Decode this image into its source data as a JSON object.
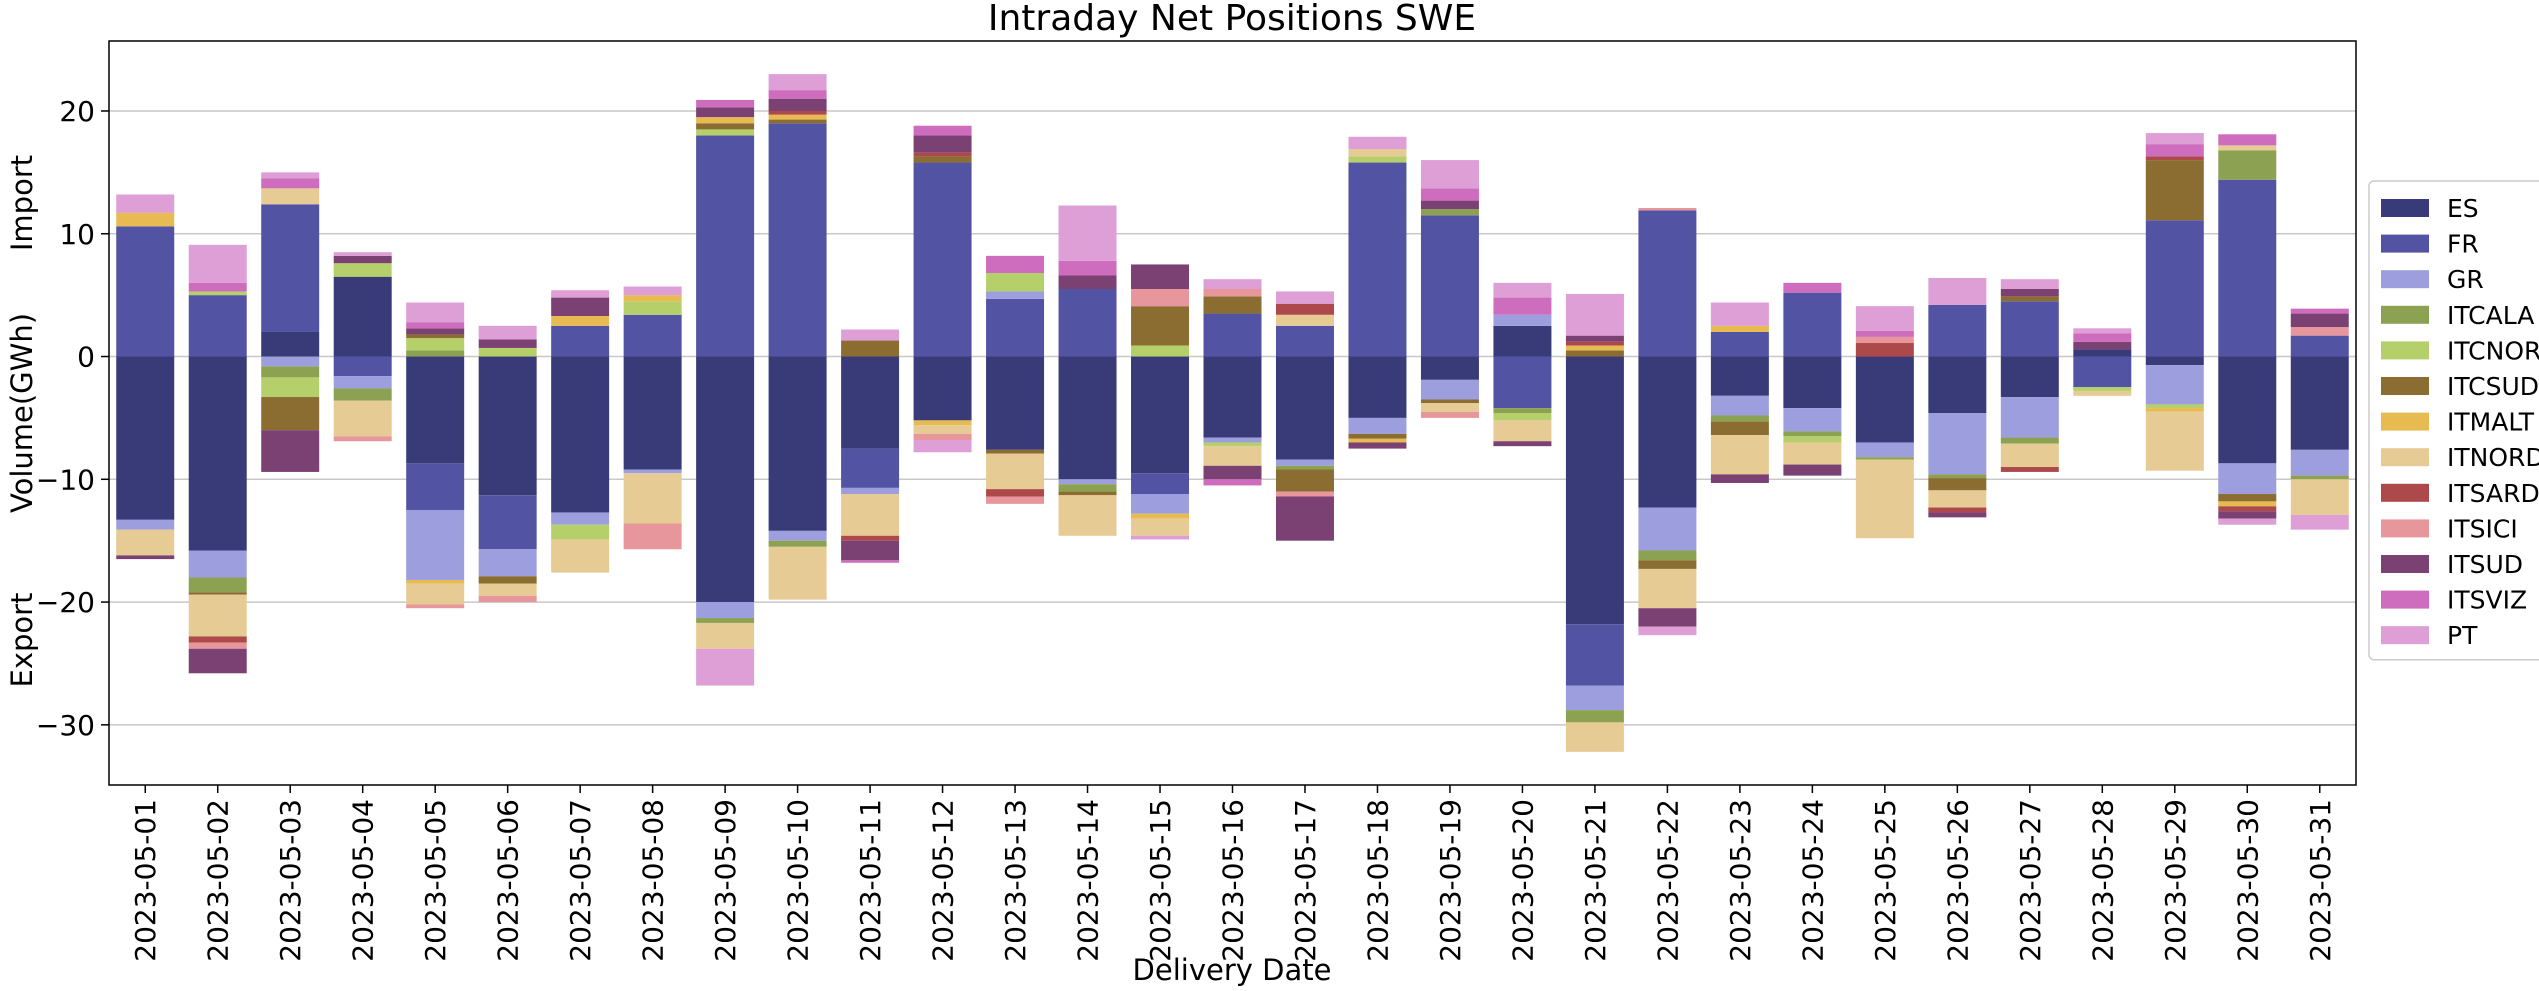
{
  "chart_data": {
    "type": "stacked-bar",
    "title": "Intraday Net Positions SWE",
    "x_label": "Delivery Date",
    "y_label": "Volume(GWh)",
    "annotations": [
      "Import",
      "Export"
    ],
    "categories": [
      "2023-05-01",
      "2023-05-02",
      "2023-05-03",
      "2023-05-04",
      "2023-05-05",
      "2023-05-06",
      "2023-05-07",
      "2023-05-08",
      "2023-05-09",
      "2023-05-10",
      "2023-05-11",
      "2023-05-12",
      "2023-05-13",
      "2023-05-14",
      "2023-05-15",
      "2023-05-16",
      "2023-05-17",
      "2023-05-18",
      "2023-05-19",
      "2023-05-20",
      "2023-05-21",
      "2023-05-22",
      "2023-05-23",
      "2023-05-24",
      "2023-05-25",
      "2023-05-26",
      "2023-05-27",
      "2023-05-28",
      "2023-05-29",
      "2023-05-30",
      "2023-05-31"
    ],
    "series": [
      {
        "name": "ES",
        "color": "#393b79",
        "values": [
          -13.3,
          -15.8,
          2.0,
          6.5,
          -8.7,
          -11.3,
          -12.7,
          -9.2,
          -20.0,
          -14.2,
          -7.5,
          -5.2,
          -7.6,
          -10.0,
          -9.5,
          -6.6,
          -8.4,
          -5.0,
          -1.9,
          2.5,
          -21.8,
          -12.3,
          -3.2,
          -4.2,
          -7.0,
          -4.6,
          -3.3,
          0.6,
          -0.7,
          -8.7,
          -7.6
        ]
      },
      {
        "name": "FR",
        "color": "#5254a3",
        "values": [
          10.6,
          5.0,
          10.4,
          -1.6,
          -3.8,
          -4.4,
          2.5,
          3.4,
          18.0,
          19.0,
          -3.2,
          15.8,
          4.7,
          5.5,
          -1.7,
          3.5,
          2.5,
          15.8,
          11.5,
          -4.2,
          -5.0,
          11.9,
          2.0,
          5.2,
          0,
          4.2,
          4.5,
          -2.5,
          11.1,
          14.4,
          1.7
        ]
      },
      {
        "name": "GR",
        "color": "#9c9ede",
        "values": [
          -0.8,
          -2.2,
          -0.8,
          -1.0,
          -5.7,
          -2.2,
          -1.0,
          -0.3,
          -1.3,
          -0.8,
          -0.5,
          0,
          0.6,
          -0.4,
          -1.6,
          -0.4,
          -0.5,
          -1.3,
          -1.6,
          0.9,
          -2.0,
          -3.5,
          -1.6,
          -1.9,
          -1.2,
          -5.0,
          -3.3,
          0,
          -3.2,
          -2.5,
          -2.1
        ]
      },
      {
        "name": "ITCALA",
        "color": "#8ca252",
        "values": [
          0,
          -1.2,
          -0.9,
          -1.0,
          0.5,
          0,
          0,
          0,
          -0.4,
          -0.5,
          0,
          0,
          0,
          -0.6,
          0,
          0,
          -0.3,
          0,
          0.5,
          -0.4,
          -1.0,
          -0.8,
          -0.5,
          -0.4,
          -0.2,
          -0.3,
          -0.5,
          0,
          0,
          2.4,
          -0.3
        ]
      },
      {
        "name": "ITCNOR",
        "color": "#b5cf6b",
        "values": [
          0,
          0.3,
          -1.6,
          1.1,
          1.0,
          0.7,
          -1.2,
          1.1,
          0.5,
          0,
          0,
          0,
          1.5,
          0,
          0.9,
          -0.3,
          0,
          0.5,
          0,
          -0.6,
          0,
          0,
          0,
          -0.5,
          0,
          0,
          0,
          -0.3,
          -0.3,
          0,
          0
        ]
      },
      {
        "name": "ITCSUD",
        "color": "#8c6d31",
        "values": [
          0,
          -0.2,
          -2.7,
          0,
          0.3,
          -0.6,
          0,
          0,
          0.5,
          0.3,
          1.3,
          0.5,
          -0.3,
          -0.3,
          3.2,
          1.4,
          -1.8,
          -0.4,
          -0.3,
          0,
          0.5,
          -0.7,
          -1.1,
          0,
          0,
          -1.0,
          0.4,
          0,
          4.9,
          -0.6,
          0
        ]
      },
      {
        "name": "ITMALT",
        "color": "#e7ba52",
        "values": [
          1.1,
          0,
          0,
          0,
          -0.3,
          0,
          0.8,
          0.5,
          0.5,
          0.4,
          0,
          -0.4,
          0,
          0,
          -0.4,
          0,
          0,
          -0.3,
          0,
          0,
          0.4,
          0,
          0.5,
          0,
          0,
          0,
          0,
          0,
          -0.3,
          -0.4,
          0
        ]
      },
      {
        "name": "ITNORD",
        "color": "#e7cb94",
        "values": [
          -2.1,
          -3.4,
          1.3,
          -2.9,
          -1.7,
          -1.0,
          -2.7,
          -4.1,
          -2.1,
          -4.3,
          -3.4,
          -0.7,
          -2.9,
          -3.3,
          -1.4,
          -1.6,
          0.9,
          0.6,
          -0.7,
          -1.7,
          -2.4,
          -3.2,
          -3.2,
          -1.8,
          -6.4,
          -1.4,
          -1.9,
          -0.4,
          -4.8,
          0.4,
          -2.9
        ]
      },
      {
        "name": "ITSARD",
        "color": "#ad494a",
        "values": [
          0,
          -0.5,
          0,
          0,
          0,
          0,
          0,
          0,
          0,
          0.3,
          -0.4,
          0.3,
          -0.6,
          0,
          0,
          0,
          0.9,
          0,
          0,
          0,
          0.3,
          0,
          0,
          0,
          1.1,
          -0.4,
          -0.4,
          0,
          0.3,
          -0.4,
          0
        ]
      },
      {
        "name": "ITSICI",
        "color": "#e7969c",
        "values": [
          0,
          -0.5,
          0,
          -0.4,
          -0.3,
          -0.5,
          0,
          -2.1,
          0,
          0,
          0,
          -0.5,
          -0.6,
          0,
          1.4,
          0.6,
          -0.4,
          0,
          -0.5,
          0,
          0,
          0.2,
          0,
          0,
          0.5,
          0,
          0,
          0,
          0,
          0,
          0.7
        ]
      },
      {
        "name": "ITSUD",
        "color": "#7b4173",
        "values": [
          -0.3,
          -2.0,
          -3.4,
          0.6,
          0.5,
          0.7,
          1.5,
          0,
          0.8,
          1.0,
          -1.6,
          1.4,
          0,
          1.1,
          2.0,
          -1.1,
          -3.6,
          -0.5,
          0.7,
          -0.4,
          0.5,
          -1.5,
          -0.7,
          -0.9,
          0,
          -0.4,
          0.6,
          0.6,
          0,
          -0.6,
          1.1
        ]
      },
      {
        "name": "ITSVIZ",
        "color": "#ce6dbd",
        "values": [
          0,
          0.7,
          0.8,
          0,
          0.5,
          0,
          0,
          0,
          0.6,
          0.7,
          -0.2,
          0.8,
          1.4,
          1.2,
          0,
          -0.5,
          0,
          0,
          1.0,
          1.4,
          0,
          0,
          0,
          0.8,
          0.5,
          0,
          0,
          0.7,
          1.0,
          0.9,
          0.4
        ]
      },
      {
        "name": "PT",
        "color": "#de9ed6",
        "values": [
          1.5,
          3.1,
          0.5,
          0.3,
          1.6,
          1.1,
          0.6,
          0.7,
          -3.0,
          1.3,
          0.9,
          -1.0,
          0,
          4.5,
          -0.3,
          0.8,
          1.0,
          1.0,
          2.3,
          1.2,
          3.4,
          -0.7,
          1.9,
          0,
          2.0,
          2.2,
          0.8,
          0.4,
          0.9,
          -0.5,
          -1.2
        ]
      }
    ],
    "ylim": [
      -34.9,
      25.7
    ],
    "yticks": [
      {
        "value": -30,
        "label": "−30"
      },
      {
        "value": -20,
        "label": "−20"
      },
      {
        "value": -10,
        "label": "−10"
      },
      0,
      10,
      20
    ],
    "grid": true,
    "legend": "right"
  }
}
